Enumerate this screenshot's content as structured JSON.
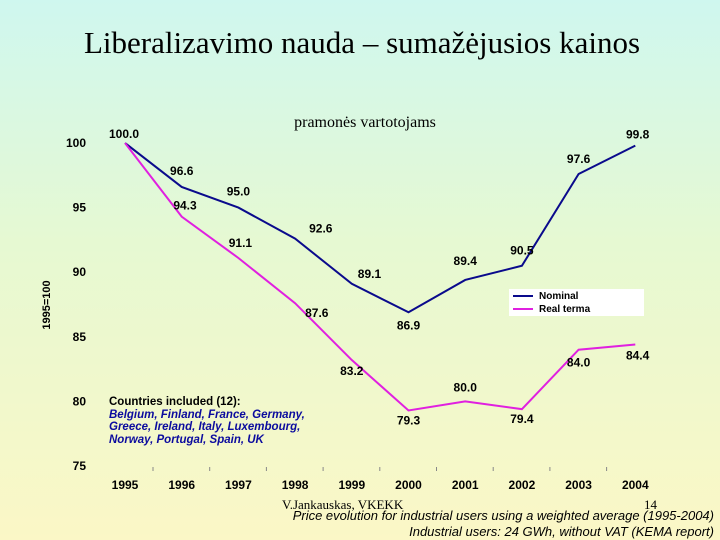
{
  "page": {
    "title": "Liberalizavimo nauda – sumažėjusios kainos",
    "author": "V.Jankauskas, VKEKK",
    "page_number": "14",
    "note_line1": "Price evolution for industrial users using a weighted average (1995-2004)",
    "note_line2": "Industrial users: 24 GWh, without VAT (KEMA report)",
    "countries_title": "Countries included (12):",
    "countries_list": "Belgium, Finland, France, Germany, Greece, Ireland, Italy, Luxembourg, Norway, Portugal, Spain, UK"
  },
  "chart_data": {
    "type": "line",
    "title": "",
    "subtitle": "pramonės vartotojams",
    "xlabel": "",
    "ylabel": "1995=100",
    "categories": [
      "1995",
      "1996",
      "1997",
      "1998",
      "1999",
      "2000",
      "2001",
      "2002",
      "2003",
      "2004"
    ],
    "ylim": [
      75,
      100
    ],
    "yticks": [
      "75",
      "80",
      "85",
      "90",
      "95",
      "100"
    ],
    "grid": false,
    "legend_position": "right",
    "series": [
      {
        "name": "Nominal",
        "color": "#0a0a8c",
        "values": [
          100.0,
          96.6,
          95.0,
          92.6,
          89.1,
          86.9,
          89.4,
          90.5,
          97.6,
          99.8
        ],
        "labels": [
          "100.0",
          "96.6",
          "95.0",
          "92.6",
          "89.1",
          "86.9",
          "89.4",
          "90.5",
          "97.6",
          "99.8"
        ]
      },
      {
        "name": "Real terma",
        "color": "#e020e0",
        "values": [
          100.0,
          94.3,
          91.1,
          87.6,
          83.2,
          79.3,
          80.0,
          79.4,
          84.0,
          84.4
        ],
        "labels": [
          "",
          "94.3",
          "91.1",
          "87.6",
          "83.2",
          "79.3",
          "80.0",
          "79.4",
          "84.0",
          "84.4"
        ]
      }
    ]
  }
}
